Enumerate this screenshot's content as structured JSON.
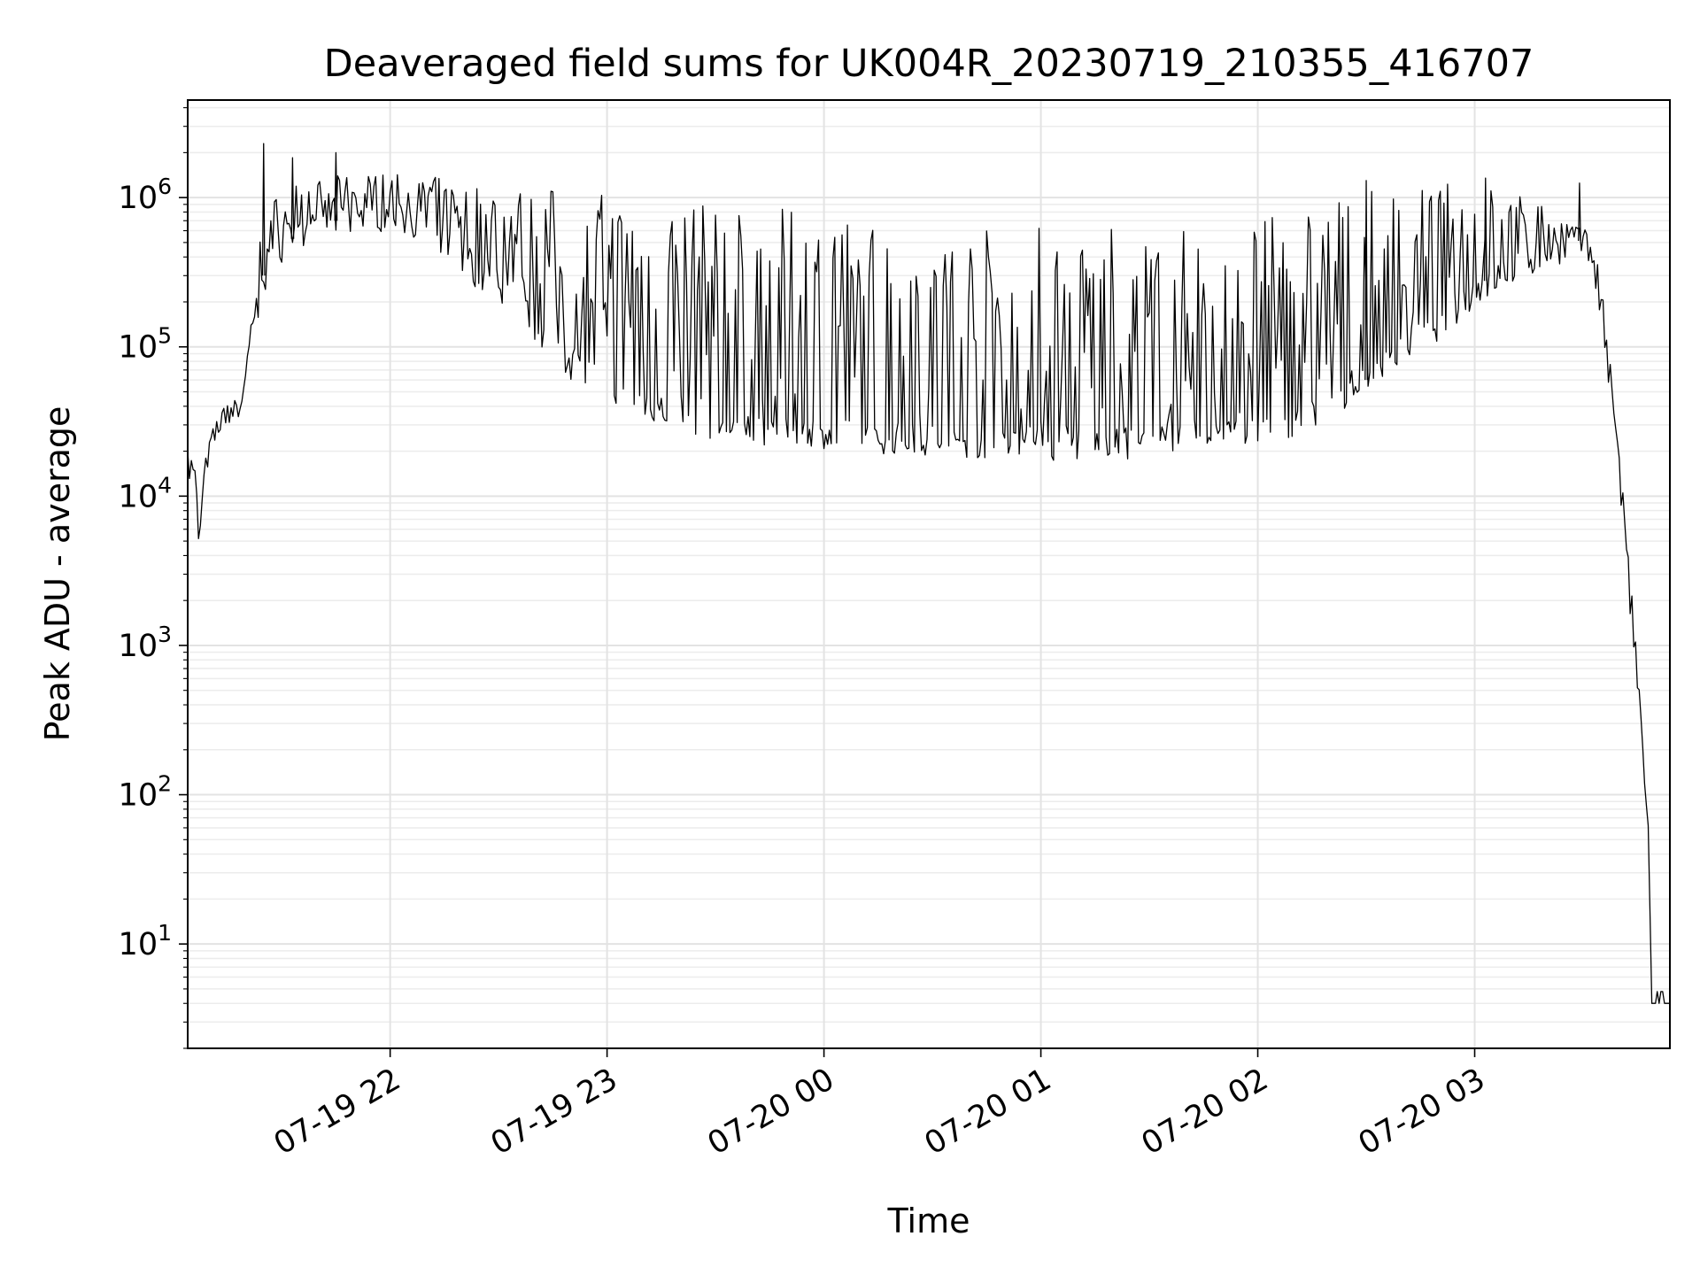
{
  "chart_data": {
    "type": "line",
    "title": "Deaveraged field sums for UK004R_20230719_210355_416707",
    "xlabel": "Time",
    "ylabel": "Peak ADU - average",
    "y_scale": "log",
    "grid": "major and minor",
    "legend": "none",
    "line_color": "#000000",
    "x_ticks": [
      {
        "time": "2023-07-19 22:00",
        "label": "07-19 22"
      },
      {
        "time": "2023-07-19 23:00",
        "label": "07-19 23"
      },
      {
        "time": "2023-07-20 00:00",
        "label": "07-20 00"
      },
      {
        "time": "2023-07-20 01:00",
        "label": "07-20 01"
      },
      {
        "time": "2023-07-20 02:00",
        "label": "07-20 02"
      },
      {
        "time": "2023-07-20 03:00",
        "label": "07-20 03"
      }
    ],
    "y_ticks": [
      {
        "value": 10,
        "base": "10",
        "exp": "1"
      },
      {
        "value": 100,
        "base": "10",
        "exp": "2"
      },
      {
        "value": 1000,
        "base": "10",
        "exp": "3"
      },
      {
        "value": 10000,
        "base": "10",
        "exp": "4"
      },
      {
        "value": 100000,
        "base": "10",
        "exp": "5"
      },
      {
        "value": 1000000,
        "base": "10",
        "exp": "6"
      }
    ],
    "xlim": [
      "2023-07-19 21:04",
      "2023-07-20 03:54"
    ],
    "ylim": [
      2,
      4500000
    ],
    "series": [
      {
        "x": [
          "2023-07-19 21:04",
          "2023-07-19 21:05",
          "2023-07-19 21:06",
          "2023-07-19 21:07",
          "2023-07-19 21:08",
          "2023-07-19 21:10",
          "2023-07-19 21:12",
          "2023-07-19 21:15",
          "2023-07-19 21:18",
          "2023-07-19 21:20",
          "2023-07-19 21:25",
          "2023-07-19 21:30",
          "2023-07-19 21:35",
          "2023-07-19 21:40",
          "2023-07-19 21:45",
          "2023-07-19 21:50",
          "2023-07-19 21:55",
          "2023-07-19 22:00",
          "2023-07-19 22:10",
          "2023-07-19 22:20",
          "2023-07-19 22:30",
          "2023-07-19 22:40",
          "2023-07-19 22:50",
          "2023-07-19 23:00",
          "2023-07-19 23:15",
          "2023-07-19 23:30",
          "2023-07-19 23:45",
          "2023-07-20 00:00",
          "2023-07-20 00:15",
          "2023-07-20 00:30",
          "2023-07-20 00:45",
          "2023-07-20 01:00",
          "2023-07-20 01:15",
          "2023-07-20 01:30",
          "2023-07-20 01:45",
          "2023-07-20 02:00",
          "2023-07-20 02:10",
          "2023-07-20 02:20",
          "2023-07-20 02:30",
          "2023-07-20 02:40",
          "2023-07-20 02:50",
          "2023-07-20 03:00",
          "2023-07-20 03:10",
          "2023-07-20 03:20",
          "2023-07-20 03:25",
          "2023-07-20 03:28",
          "2023-07-20 03:31",
          "2023-07-20 03:34",
          "2023-07-20 03:37",
          "2023-07-20 03:40",
          "2023-07-20 03:43",
          "2023-07-20 03:45",
          "2023-07-20 03:47",
          "2023-07-20 03:48",
          "2023-07-20 03:49",
          "2023-07-20 03:54"
        ],
        "base": [
          17000,
          15000,
          13000,
          4000,
          9000,
          20000,
          30000,
          38000,
          40000,
          50000,
          300000,
          500000,
          550000,
          700000,
          700000,
          750000,
          800000,
          800000,
          700000,
          400000,
          250000,
          150000,
          80000,
          60000,
          40000,
          32000,
          29000,
          27000,
          26000,
          25000,
          24000,
          23000,
          23000,
          24000,
          26000,
          28000,
          32000,
          40000,
          60000,
          100000,
          150000,
          250000,
          350000,
          450000,
          500000,
          520000,
          500000,
          300000,
          70000,
          15000,
          2000,
          600,
          100,
          60,
          4,
          4
        ],
        "peak": [
          21000,
          19000,
          16000,
          9000,
          15000,
          24000,
          34000,
          42000,
          45000,
          80000,
          900000,
          1100000,
          1300000,
          1300000,
          1400000,
          1400000,
          1450000,
          1450000,
          1400000,
          1300000,
          1250000,
          1200000,
          1150000,
          1100000,
          1000000,
          900000,
          850000,
          800000,
          750000,
          700000,
          650000,
          700000,
          650000,
          600000,
          650000,
          700000,
          850000,
          1000000,
          1100000,
          1200000,
          1250000,
          1300000,
          1100000,
          900000,
          700000,
          650000,
          600000,
          400000,
          120000,
          20000,
          3000,
          800,
          150,
          80,
          5,
          5
        ]
      }
    ],
    "notable_spikes": [
      {
        "time": "2023-07-19 21:25",
        "value": 2300000
      },
      {
        "time": "2023-07-19 21:33",
        "value": 1850000
      },
      {
        "time": "2023-07-19 21:45",
        "value": 2000000
      },
      {
        "time": "2023-07-20 02:30",
        "value": 1300000
      },
      {
        "time": "2023-07-20 03:03",
        "value": 1350000
      },
      {
        "time": "2023-07-20 03:29",
        "value": 1250000
      }
    ]
  }
}
